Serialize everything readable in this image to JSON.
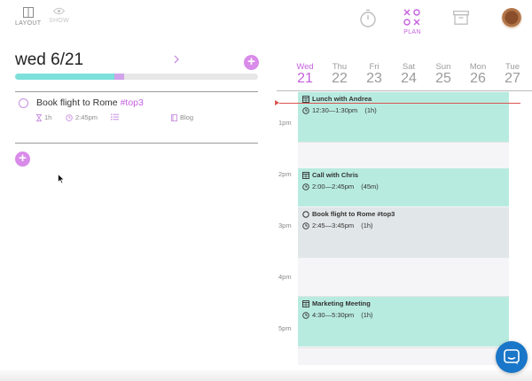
{
  "toolbar": {
    "layout_label": "LAYOUT",
    "show_label": "SHOW",
    "plan_label": "PLAN",
    "active_color": "#c561e0",
    "icons": [
      "layout-icon",
      "eye-icon",
      "stopwatch-icon",
      "plan-icon",
      "archive-icon",
      "avatar"
    ]
  },
  "day": {
    "title": "wed 6/21",
    "progress": {
      "done_fraction": 0.41,
      "planned_fraction": 0.45
    }
  },
  "tasks": [
    {
      "title": "Book flight to Rome",
      "tag": "#top3",
      "duration": "1h",
      "start": "2:45pm",
      "list": "Blog"
    }
  ],
  "calendar": {
    "days": [
      {
        "name": "Wed",
        "date": "21",
        "today": true
      },
      {
        "name": "Thu",
        "date": "22"
      },
      {
        "name": "Fri",
        "date": "23"
      },
      {
        "name": "Sat",
        "date": "24"
      },
      {
        "name": "Sun",
        "date": "25"
      },
      {
        "name": "Mon",
        "date": "26"
      },
      {
        "name": "Tue",
        "date": "27"
      }
    ],
    "hours": [
      "1pm",
      "2pm",
      "3pm",
      "4pm",
      "5pm"
    ],
    "events": [
      {
        "title": "Lunch with Andrea",
        "time": "12:30—1:30pm",
        "duration": "(1h)",
        "kind": "meeting",
        "color": "#b8ebe0"
      },
      {
        "title": "Call with Chris",
        "time": "2:00—2:45pm",
        "duration": "(45m)",
        "kind": "meeting",
        "color": "#b8ebe0"
      },
      {
        "title": "Book flight to Rome #top3",
        "time": "2:45—3:45pm",
        "duration": "(1h)",
        "kind": "task",
        "color": "#e1e6e8"
      },
      {
        "title": "Marketing Meeting",
        "time": "4:30—5:30pm",
        "duration": "(1h)",
        "kind": "meeting",
        "color": "#b8ebe0"
      }
    ]
  }
}
